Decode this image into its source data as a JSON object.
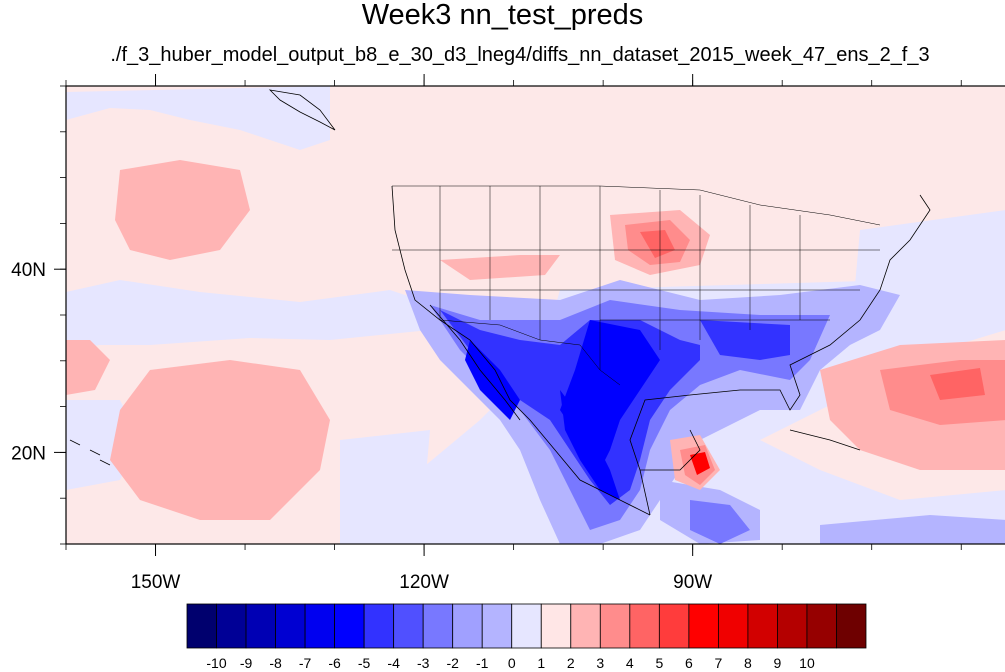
{
  "title": "Week3 nn_test_preds",
  "subtitle": "./f_3_huber_model_output_b8_e_30_d3_lneg4/diffs_nn_dataset_2015_week_47_ens_2_f_3",
  "map": {
    "projection": "cylindrical-equidistant",
    "lon_range": [
      -160,
      -55
    ],
    "lat_range": [
      10,
      60
    ],
    "lat_ticks": [
      {
        "value": 40,
        "label": "40N"
      },
      {
        "value": 20,
        "label": "20N"
      }
    ],
    "lon_ticks": [
      {
        "value": -150,
        "label": "150W"
      },
      {
        "value": -120,
        "label": "120W"
      },
      {
        "value": -90,
        "label": "90W"
      }
    ],
    "background_color": "#fde8e8"
  },
  "colorbar": {
    "colors": [
      "#00006e",
      "#000096",
      "#0000b4",
      "#0000d2",
      "#0000f0",
      "#0000ff",
      "#3232ff",
      "#5050ff",
      "#7878ff",
      "#a0a0ff",
      "#b4b4ff",
      "#e6e6ff",
      "#ffe6e6",
      "#ffb4b4",
      "#ff8c8c",
      "#ff6464",
      "#ff3c3c",
      "#ff0000",
      "#f00000",
      "#d20000",
      "#b40000",
      "#960000",
      "#6e0000"
    ],
    "labels": [
      "-10",
      "-9",
      "-8",
      "-7",
      "-6",
      "-5",
      "-4",
      "-3",
      "-2",
      "-1",
      "0",
      "1",
      "2",
      "3",
      "4",
      "5",
      "6",
      "7",
      "8",
      "9",
      "10"
    ]
  }
}
